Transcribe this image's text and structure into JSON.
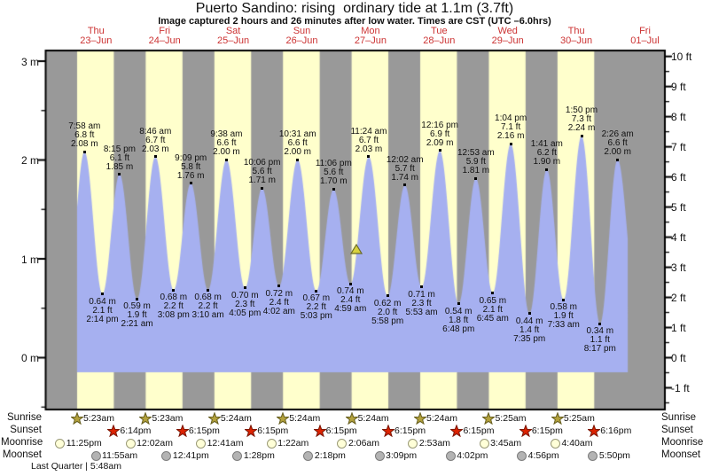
{
  "title": "Puerto Sandino: rising  ordinary tide at 1.1m (3.7ft)",
  "subtitle": "Image captured 2 hours and 26 minutes after low water. Times are CST (UTC –6.0hrs)",
  "days": [
    {
      "label": "Thu",
      "date": "23–Jun"
    },
    {
      "label": "Fri",
      "date": "24–Jun"
    },
    {
      "label": "Sat",
      "date": "25–Jun"
    },
    {
      "label": "Sun",
      "date": "26–Jun"
    },
    {
      "label": "Mon",
      "date": "27–Jun"
    },
    {
      "label": "Tue",
      "date": "28–Jun"
    },
    {
      "label": "Wed",
      "date": "29–Jun"
    },
    {
      "label": "Thu",
      "date": "30–Jun"
    },
    {
      "label": "Fri",
      "date": "01–Jul"
    }
  ],
  "axes": {
    "left_tick_labels": [
      "3 m",
      "2 m",
      "1 m",
      "0 m"
    ],
    "left_tick_values_m": [
      3,
      2,
      1,
      0
    ],
    "right_tick_labels": [
      "10 ft",
      "9 ft",
      "8 ft",
      "7 ft",
      "6 ft",
      "5 ft",
      "4 ft",
      "3 ft",
      "2 ft",
      "1 ft",
      "0 ft",
      "-1 ft"
    ],
    "right_tick_values_ft": [
      10,
      9,
      8,
      7,
      6,
      5,
      4,
      3,
      2,
      1,
      0,
      -1
    ]
  },
  "colors": {
    "night_band": "#999999",
    "day_band": "#ffffcc",
    "tide_fill": "#a6b0f0",
    "day_label": "#cc3333",
    "axis": "#000000",
    "sunrise_star_fill": "#b3a13c",
    "sunrise_star_stroke": "#665e1e",
    "sunset_star_fill": "#dd2200",
    "sunset_star_stroke": "#7a1400",
    "moonrise_fill": "#ffffd8",
    "moonrise_stroke": "#999977",
    "moonset_fill": "#b3b3b3",
    "moonset_stroke": "#7d7d7d",
    "marker_fill": "#d8d23e",
    "marker_stroke": "#6a6a28"
  },
  "chart_data": {
    "type": "area",
    "title": "Puerto Sandino tide heights",
    "ylabel_left": "meters",
    "ylabel_right": "feet",
    "ylim_m": [
      -0.53,
      3.1
    ],
    "x_range": "Wed 22-Jun evening to Fri 01-Jul evening (day 0 = Thu 23-Jun)",
    "grid": false,
    "tide_events": [
      {
        "day": 0,
        "time": "7:58 am",
        "height_m": 2.08,
        "height_ft": 6.8,
        "type": "high"
      },
      {
        "day": 0,
        "time": "2:14 pm",
        "height_m": 0.64,
        "height_ft": 2.1,
        "type": "low"
      },
      {
        "day": 0,
        "time": "8:15 pm",
        "height_m": 1.85,
        "height_ft": 6.1,
        "type": "high"
      },
      {
        "day": 1,
        "time": "2:21 am",
        "height_m": 0.59,
        "height_ft": 1.9,
        "type": "low"
      },
      {
        "day": 1,
        "time": "8:46 am",
        "height_m": 2.03,
        "height_ft": 6.7,
        "type": "high"
      },
      {
        "day": 1,
        "time": "3:08 pm",
        "height_m": 0.68,
        "height_ft": 2.2,
        "type": "low"
      },
      {
        "day": 1,
        "time": "9:09 pm",
        "height_m": 1.76,
        "height_ft": 5.8,
        "type": "high"
      },
      {
        "day": 2,
        "time": "3:10 am",
        "height_m": 0.68,
        "height_ft": 2.2,
        "type": "low"
      },
      {
        "day": 2,
        "time": "9:38 am",
        "height_m": 2.0,
        "height_ft": 6.6,
        "type": "high"
      },
      {
        "day": 2,
        "time": "4:05 pm",
        "height_m": 0.7,
        "height_ft": 2.3,
        "type": "low"
      },
      {
        "day": 2,
        "time": "10:06 pm",
        "height_m": 1.71,
        "height_ft": 5.6,
        "type": "high"
      },
      {
        "day": 3,
        "time": "4:02 am",
        "height_m": 0.72,
        "height_ft": 2.4,
        "type": "low"
      },
      {
        "day": 3,
        "time": "10:31 am",
        "height_m": 2.0,
        "height_ft": 6.6,
        "type": "high"
      },
      {
        "day": 3,
        "time": "5:03 pm",
        "height_m": 0.67,
        "height_ft": 2.2,
        "type": "low"
      },
      {
        "day": 3,
        "time": "11:06 pm",
        "height_m": 1.7,
        "height_ft": 5.6,
        "type": "high"
      },
      {
        "day": 4,
        "time": "4:59 am",
        "height_m": 0.74,
        "height_ft": 2.4,
        "type": "low"
      },
      {
        "day": 4,
        "time": "11:24 am",
        "height_m": 2.03,
        "height_ft": 6.7,
        "type": "high"
      },
      {
        "day": 4,
        "time": "5:58 pm",
        "height_m": 0.62,
        "height_ft": 2.0,
        "type": "low"
      },
      {
        "day": 5,
        "time": "12:02 am",
        "height_m": 1.74,
        "height_ft": 5.7,
        "type": "high"
      },
      {
        "day": 5,
        "time": "5:53 am",
        "height_m": 0.71,
        "height_ft": 2.3,
        "type": "low"
      },
      {
        "day": 5,
        "time": "12:16 pm",
        "height_m": 2.09,
        "height_ft": 6.9,
        "type": "high"
      },
      {
        "day": 5,
        "time": "6:48 pm",
        "height_m": 0.54,
        "height_ft": 1.8,
        "type": "low"
      },
      {
        "day": 6,
        "time": "12:53 am",
        "height_m": 1.81,
        "height_ft": 5.9,
        "type": "high"
      },
      {
        "day": 6,
        "time": "6:45 am",
        "height_m": 0.65,
        "height_ft": 2.1,
        "type": "low"
      },
      {
        "day": 6,
        "time": "1:04 pm",
        "height_m": 2.16,
        "height_ft": 7.1,
        "type": "high"
      },
      {
        "day": 6,
        "time": "7:35 pm",
        "height_m": 0.44,
        "height_ft": 1.4,
        "type": "low"
      },
      {
        "day": 7,
        "time": "1:41 am",
        "height_m": 1.9,
        "height_ft": 6.2,
        "type": "high"
      },
      {
        "day": 7,
        "time": "7:33 am",
        "height_m": 0.58,
        "height_ft": 1.9,
        "type": "low"
      },
      {
        "day": 7,
        "time": "1:50 pm",
        "height_m": 2.24,
        "height_ft": 7.3,
        "type": "high"
      },
      {
        "day": 7,
        "time": "8:17 pm",
        "height_m": 0.34,
        "height_ft": 1.1,
        "type": "low"
      },
      {
        "day": 8,
        "time": "2:26 am",
        "height_m": 2.0,
        "height_ft": 6.6,
        "type": "high"
      }
    ],
    "current_marker": {
      "day": 4,
      "hour": 7.0,
      "height_m": 1.1,
      "note": "current tide level 1.1m (3.7ft), rising"
    }
  },
  "almanac": {
    "sunrise": {
      "label": "Sunrise",
      "events": [
        {
          "day": 0,
          "time": "5:23am"
        },
        {
          "day": 1,
          "time": "5:23am"
        },
        {
          "day": 2,
          "time": "5:24am"
        },
        {
          "day": 3,
          "time": "5:24am"
        },
        {
          "day": 4,
          "time": "5:24am"
        },
        {
          "day": 5,
          "time": "5:24am"
        },
        {
          "day": 6,
          "time": "5:25am"
        },
        {
          "day": 7,
          "time": "5:25am"
        }
      ]
    },
    "sunset": {
      "label": "Sunset",
      "events": [
        {
          "day": 0,
          "time": "6:14pm"
        },
        {
          "day": 1,
          "time": "6:15pm"
        },
        {
          "day": 2,
          "time": "6:15pm"
        },
        {
          "day": 3,
          "time": "6:15pm"
        },
        {
          "day": 4,
          "time": "6:15pm"
        },
        {
          "day": 5,
          "time": "6:15pm"
        },
        {
          "day": 6,
          "time": "6:15pm"
        },
        {
          "day": 7,
          "time": "6:16pm"
        }
      ]
    },
    "moonrise": {
      "label": "Moonrise",
      "events": [
        {
          "day": -1,
          "time": "11:25pm"
        },
        {
          "day": 1,
          "time": "12:02am"
        },
        {
          "day": 2,
          "time": "12:41am"
        },
        {
          "day": 3,
          "time": "1:22am"
        },
        {
          "day": 4,
          "time": "2:06am"
        },
        {
          "day": 5,
          "time": "2:53am"
        },
        {
          "day": 6,
          "time": "3:45am"
        },
        {
          "day": 7,
          "time": "4:40am"
        }
      ]
    },
    "moonset": {
      "label": "Moonset",
      "events": [
        {
          "day": 0,
          "time": "11:55am"
        },
        {
          "day": 1,
          "time": "12:41pm"
        },
        {
          "day": 2,
          "time": "1:28pm"
        },
        {
          "day": 3,
          "time": "2:18pm"
        },
        {
          "day": 4,
          "time": "3:09pm"
        },
        {
          "day": 5,
          "time": "4:02pm"
        },
        {
          "day": 6,
          "time": "4:56pm"
        },
        {
          "day": 7,
          "time": "5:50pm"
        }
      ]
    },
    "footer": "Last Quarter | 5:48am"
  }
}
